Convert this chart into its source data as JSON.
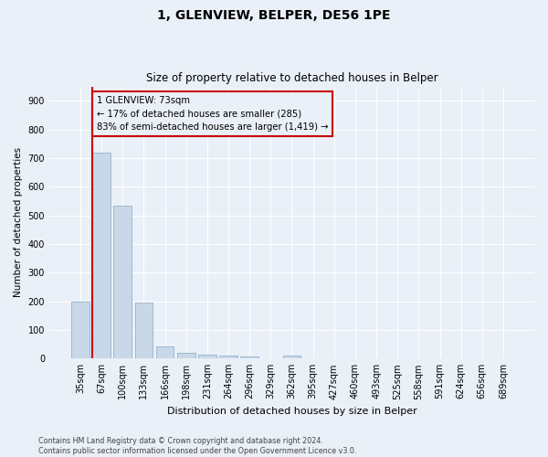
{
  "title_line1": "1, GLENVIEW, BELPER, DE56 1PE",
  "title_line2": "Size of property relative to detached houses in Belper",
  "xlabel": "Distribution of detached houses by size in Belper",
  "ylabel": "Number of detached properties",
  "categories": [
    "35sqm",
    "67sqm",
    "100sqm",
    "133sqm",
    "166sqm",
    "198sqm",
    "231sqm",
    "264sqm",
    "296sqm",
    "329sqm",
    "362sqm",
    "395sqm",
    "427sqm",
    "460sqm",
    "493sqm",
    "525sqm",
    "558sqm",
    "591sqm",
    "624sqm",
    "656sqm",
    "689sqm"
  ],
  "values": [
    200,
    720,
    535,
    195,
    42,
    20,
    15,
    12,
    8,
    0,
    10,
    0,
    0,
    0,
    0,
    0,
    0,
    0,
    0,
    0,
    0
  ],
  "bar_color": "#c8d8e8",
  "bar_edge_color": "#a0b8cc",
  "vline_x": 0.575,
  "annotation_text_line1": "1 GLENVIEW: 73sqm",
  "annotation_text_line2": "← 17% of detached houses are smaller (285)",
  "annotation_text_line3": "83% of semi-detached houses are larger (1,419) →",
  "annotation_box_edge": "#cc0000",
  "vline_color": "#cc0000",
  "ylim": [
    0,
    950
  ],
  "yticks": [
    0,
    100,
    200,
    300,
    400,
    500,
    600,
    700,
    800,
    900
  ],
  "background_color": "#eaf0f8",
  "grid_color": "#ffffff",
  "footer_line1": "Contains HM Land Registry data © Crown copyright and database right 2024.",
  "footer_line2": "Contains public sector information licensed under the Open Government Licence v3.0."
}
